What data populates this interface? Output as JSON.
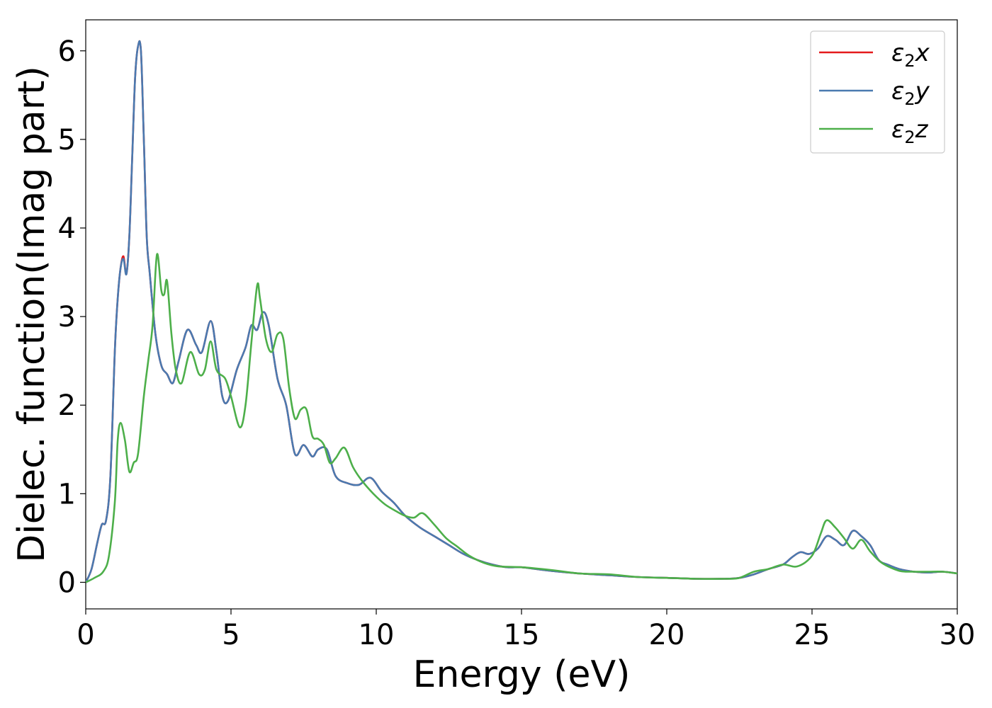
{
  "chart_data": {
    "type": "line",
    "xlabel": "Energy (eV)",
    "ylabel": "Dielec. function(Imag part)",
    "xlim": [
      0,
      30
    ],
    "ylim": [
      -0.3,
      6.35
    ],
    "xticks": [
      0,
      5,
      10,
      15,
      20,
      25,
      30
    ],
    "xtick_labels": [
      "0",
      "5",
      "10",
      "15",
      "20",
      "25",
      "30"
    ],
    "yticks": [
      0,
      1,
      2,
      3,
      4,
      5,
      6
    ],
    "ytick_labels": [
      "0",
      "1",
      "2",
      "3",
      "4",
      "5",
      "6"
    ],
    "grid": false,
    "legend_position": "top-right",
    "series": [
      {
        "name": "ε₂x",
        "legend_main": "ε",
        "legend_sub": "2",
        "legend_suffix": "x",
        "color": "#e41a1c",
        "x": [
          0,
          0.2,
          0.4,
          0.55,
          0.7,
          0.85,
          1.0,
          1.1,
          1.2,
          1.3,
          1.4,
          1.5,
          1.6,
          1.7,
          1.8,
          1.9,
          2.0,
          2.1,
          2.2,
          2.4,
          2.6,
          2.8,
          3.0,
          3.2,
          3.5,
          3.8,
          4.0,
          4.3,
          4.5,
          4.7,
          4.9,
          5.2,
          5.5,
          5.7,
          5.9,
          6.1,
          6.3,
          6.6,
          6.9,
          7.2,
          7.5,
          7.8,
          8.0,
          8.3,
          8.6,
          9.0,
          9.4,
          9.8,
          10.2,
          10.6,
          11.0,
          11.5,
          12.0,
          12.5,
          13.0,
          13.5,
          14.0,
          14.5,
          15.0,
          15.5,
          16.0,
          17.0,
          18.0,
          19.0,
          20.0,
          21.0,
          22.0,
          22.5,
          23.0,
          23.5,
          24.0,
          24.3,
          24.6,
          24.9,
          25.2,
          25.5,
          25.8,
          26.1,
          26.4,
          26.7,
          27.0,
          27.3,
          27.6,
          28.0,
          28.5,
          29.0,
          29.5,
          30.0
        ],
        "values": [
          0,
          0.15,
          0.45,
          0.65,
          0.7,
          1.2,
          2.6,
          3.2,
          3.55,
          3.68,
          3.48,
          3.9,
          4.8,
          5.7,
          6.05,
          6.0,
          5.0,
          3.9,
          3.5,
          2.8,
          2.45,
          2.35,
          2.25,
          2.5,
          2.85,
          2.68,
          2.6,
          2.95,
          2.6,
          2.1,
          2.05,
          2.4,
          2.65,
          2.9,
          2.85,
          3.05,
          2.9,
          2.3,
          2.0,
          1.45,
          1.55,
          1.42,
          1.5,
          1.5,
          1.2,
          1.12,
          1.1,
          1.18,
          1.02,
          0.9,
          0.75,
          0.62,
          0.52,
          0.42,
          0.32,
          0.25,
          0.2,
          0.17,
          0.17,
          0.15,
          0.13,
          0.1,
          0.08,
          0.06,
          0.05,
          0.04,
          0.04,
          0.05,
          0.09,
          0.15,
          0.2,
          0.28,
          0.34,
          0.32,
          0.38,
          0.52,
          0.48,
          0.42,
          0.58,
          0.52,
          0.42,
          0.25,
          0.2,
          0.15,
          0.12,
          0.11,
          0.12,
          0.1
        ]
      },
      {
        "name": "ε₂y",
        "legend_main": "ε",
        "legend_sub": "2",
        "legend_suffix": "y",
        "color": "#4a7ab0",
        "x": [
          0,
          0.2,
          0.4,
          0.55,
          0.7,
          0.85,
          1.0,
          1.1,
          1.2,
          1.3,
          1.4,
          1.5,
          1.6,
          1.7,
          1.8,
          1.9,
          2.0,
          2.1,
          2.2,
          2.4,
          2.6,
          2.8,
          3.0,
          3.2,
          3.5,
          3.8,
          4.0,
          4.3,
          4.5,
          4.7,
          4.9,
          5.2,
          5.5,
          5.7,
          5.9,
          6.1,
          6.3,
          6.6,
          6.9,
          7.2,
          7.5,
          7.8,
          8.0,
          8.3,
          8.6,
          9.0,
          9.4,
          9.8,
          10.2,
          10.6,
          11.0,
          11.5,
          12.0,
          12.5,
          13.0,
          13.5,
          14.0,
          14.5,
          15.0,
          15.5,
          16.0,
          17.0,
          18.0,
          19.0,
          20.0,
          21.0,
          22.0,
          22.5,
          23.0,
          23.5,
          24.0,
          24.3,
          24.6,
          24.9,
          25.2,
          25.5,
          25.8,
          26.1,
          26.4,
          26.7,
          27.0,
          27.3,
          27.6,
          28.0,
          28.5,
          29.0,
          29.5,
          30.0
        ],
        "values": [
          0,
          0.15,
          0.45,
          0.65,
          0.7,
          1.2,
          2.6,
          3.2,
          3.55,
          3.65,
          3.48,
          3.9,
          4.8,
          5.7,
          6.05,
          6.0,
          5.0,
          3.9,
          3.5,
          2.8,
          2.45,
          2.35,
          2.25,
          2.5,
          2.85,
          2.68,
          2.6,
          2.95,
          2.6,
          2.1,
          2.05,
          2.4,
          2.65,
          2.9,
          2.85,
          3.05,
          2.9,
          2.3,
          2.0,
          1.45,
          1.55,
          1.42,
          1.5,
          1.5,
          1.2,
          1.12,
          1.1,
          1.18,
          1.02,
          0.9,
          0.75,
          0.62,
          0.52,
          0.42,
          0.32,
          0.25,
          0.2,
          0.17,
          0.17,
          0.15,
          0.13,
          0.1,
          0.08,
          0.06,
          0.05,
          0.04,
          0.04,
          0.05,
          0.09,
          0.15,
          0.2,
          0.28,
          0.34,
          0.32,
          0.38,
          0.52,
          0.48,
          0.42,
          0.58,
          0.52,
          0.42,
          0.25,
          0.2,
          0.15,
          0.12,
          0.11,
          0.12,
          0.1
        ]
      },
      {
        "name": "ε₂z",
        "legend_main": "ε",
        "legend_sub": "2",
        "legend_suffix": "z",
        "color": "#4daf4a",
        "x": [
          0,
          0.3,
          0.6,
          0.8,
          1.0,
          1.1,
          1.2,
          1.35,
          1.5,
          1.65,
          1.8,
          2.0,
          2.15,
          2.3,
          2.45,
          2.6,
          2.7,
          2.8,
          2.95,
          3.1,
          3.3,
          3.6,
          3.9,
          4.1,
          4.3,
          4.5,
          4.8,
          5.0,
          5.3,
          5.5,
          5.7,
          5.9,
          6.0,
          6.2,
          6.4,
          6.6,
          6.8,
          7.0,
          7.2,
          7.4,
          7.6,
          7.8,
          8.0,
          8.2,
          8.4,
          8.6,
          8.9,
          9.2,
          9.5,
          9.9,
          10.3,
          10.7,
          11.0,
          11.3,
          11.6,
          12.0,
          12.4,
          12.8,
          13.2,
          13.7,
          14.2,
          15.0,
          16.0,
          17.0,
          18.0,
          19.0,
          20.0,
          21.0,
          22.0,
          22.5,
          23.0,
          23.5,
          24.0,
          24.5,
          25.0,
          25.3,
          25.5,
          25.8,
          26.1,
          26.4,
          26.7,
          27.0,
          27.4,
          28.0,
          28.5,
          29.0,
          29.5,
          30.0
        ],
        "values": [
          0,
          0.05,
          0.12,
          0.3,
          0.9,
          1.6,
          1.8,
          1.6,
          1.25,
          1.35,
          1.45,
          2.1,
          2.5,
          2.9,
          3.7,
          3.3,
          3.25,
          3.4,
          2.8,
          2.4,
          2.25,
          2.6,
          2.35,
          2.4,
          2.72,
          2.4,
          2.3,
          2.1,
          1.75,
          2.0,
          2.7,
          3.35,
          3.2,
          2.75,
          2.6,
          2.8,
          2.75,
          2.2,
          1.85,
          1.95,
          1.95,
          1.65,
          1.62,
          1.55,
          1.35,
          1.4,
          1.52,
          1.3,
          1.15,
          1.0,
          0.88,
          0.8,
          0.75,
          0.73,
          0.78,
          0.65,
          0.5,
          0.4,
          0.3,
          0.22,
          0.18,
          0.17,
          0.14,
          0.1,
          0.09,
          0.06,
          0.05,
          0.04,
          0.04,
          0.05,
          0.12,
          0.15,
          0.2,
          0.18,
          0.3,
          0.55,
          0.7,
          0.62,
          0.5,
          0.38,
          0.48,
          0.35,
          0.22,
          0.13,
          0.12,
          0.12,
          0.12,
          0.1
        ]
      }
    ]
  }
}
